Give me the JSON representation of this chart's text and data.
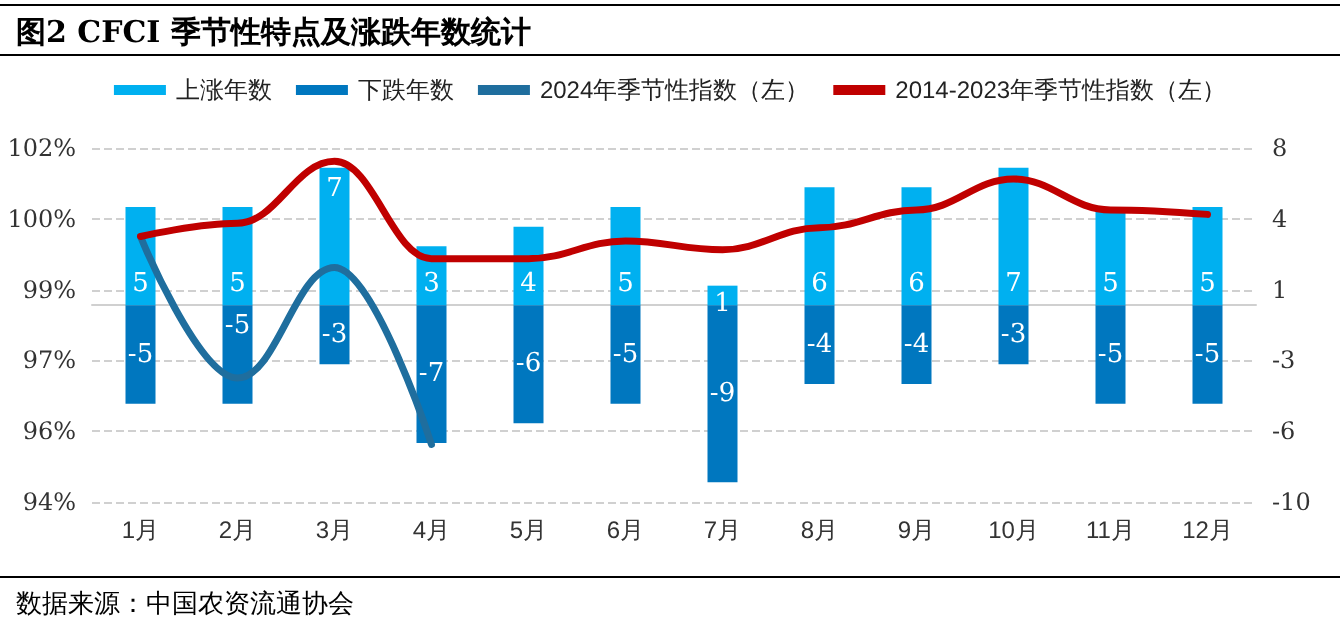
{
  "chart_data": {
    "type": "bar",
    "title": "图2 CFCI 季节性特点及涨跌年数统计",
    "categories": [
      "1月",
      "2月",
      "3月",
      "4月",
      "5月",
      "6月",
      "7月",
      "8月",
      "9月",
      "10月",
      "11月",
      "12月"
    ],
    "series": [
      {
        "name": "上涨年数",
        "axis": "y2",
        "color": "#00b0f0",
        "values": [
          5,
          5,
          7,
          3,
          4,
          5,
          1,
          6,
          6,
          7,
          5,
          5
        ],
        "value_labels": [
          "5",
          "5",
          "7",
          "3",
          "4",
          "5",
          "1",
          "6",
          "6",
          "7",
          "5",
          "5"
        ]
      },
      {
        "name": "下跌年数",
        "axis": "y2",
        "color": "#0077bf",
        "values": [
          -5,
          -5,
          -3,
          -7,
          -6,
          -5,
          -9,
          -4,
          -4,
          -3,
          -5,
          -5
        ],
        "value_labels": [
          "-5",
          "-5",
          "-3",
          "-7",
          "-6",
          "-5",
          "-9",
          "-4",
          "-4",
          "-3",
          "-5",
          "-5"
        ]
      },
      {
        "name": "2024年季节性指数（左）",
        "type": "line",
        "color": "#1f6e9e",
        "values": [
          100.0,
          96.8,
          99.3,
          95.3,
          null,
          null,
          null,
          null,
          null,
          null,
          null,
          null
        ]
      },
      {
        "name": "2014-2023年季节性指数（左）",
        "type": "line",
        "color": "#c00000",
        "values": [
          100.0,
          100.3,
          101.7,
          99.5,
          99.5,
          99.9,
          99.7,
          100.2,
          100.6,
          101.3,
          100.6,
          100.5
        ]
      }
    ],
    "stacked": true,
    "ylim": [
      94,
      102
    ],
    "yticks": [
      {
        "value": 94,
        "label": "94%"
      },
      {
        "value": 95.6,
        "label": "96%"
      },
      {
        "value": 97.2,
        "label": "97%"
      },
      {
        "value": 98.8,
        "label": "99%"
      },
      {
        "value": 100.4,
        "label": "100%"
      },
      {
        "value": 102,
        "label": "102%"
      }
    ],
    "y2lim": [
      -10,
      8
    ],
    "y2ticks": [
      {
        "value": -10,
        "label": "-10"
      },
      {
        "value": -6.4,
        "label": "-6"
      },
      {
        "value": -2.8,
        "label": "-3"
      },
      {
        "value": 0.8,
        "label": "1"
      },
      {
        "value": 4.4,
        "label": "4"
      },
      {
        "value": 8,
        "label": "8"
      }
    ],
    "grid": "y",
    "legend": "top",
    "marker": "none",
    "line_style": "solid",
    "annotations": [
      "数据来源：中国农资流通协会"
    ]
  }
}
